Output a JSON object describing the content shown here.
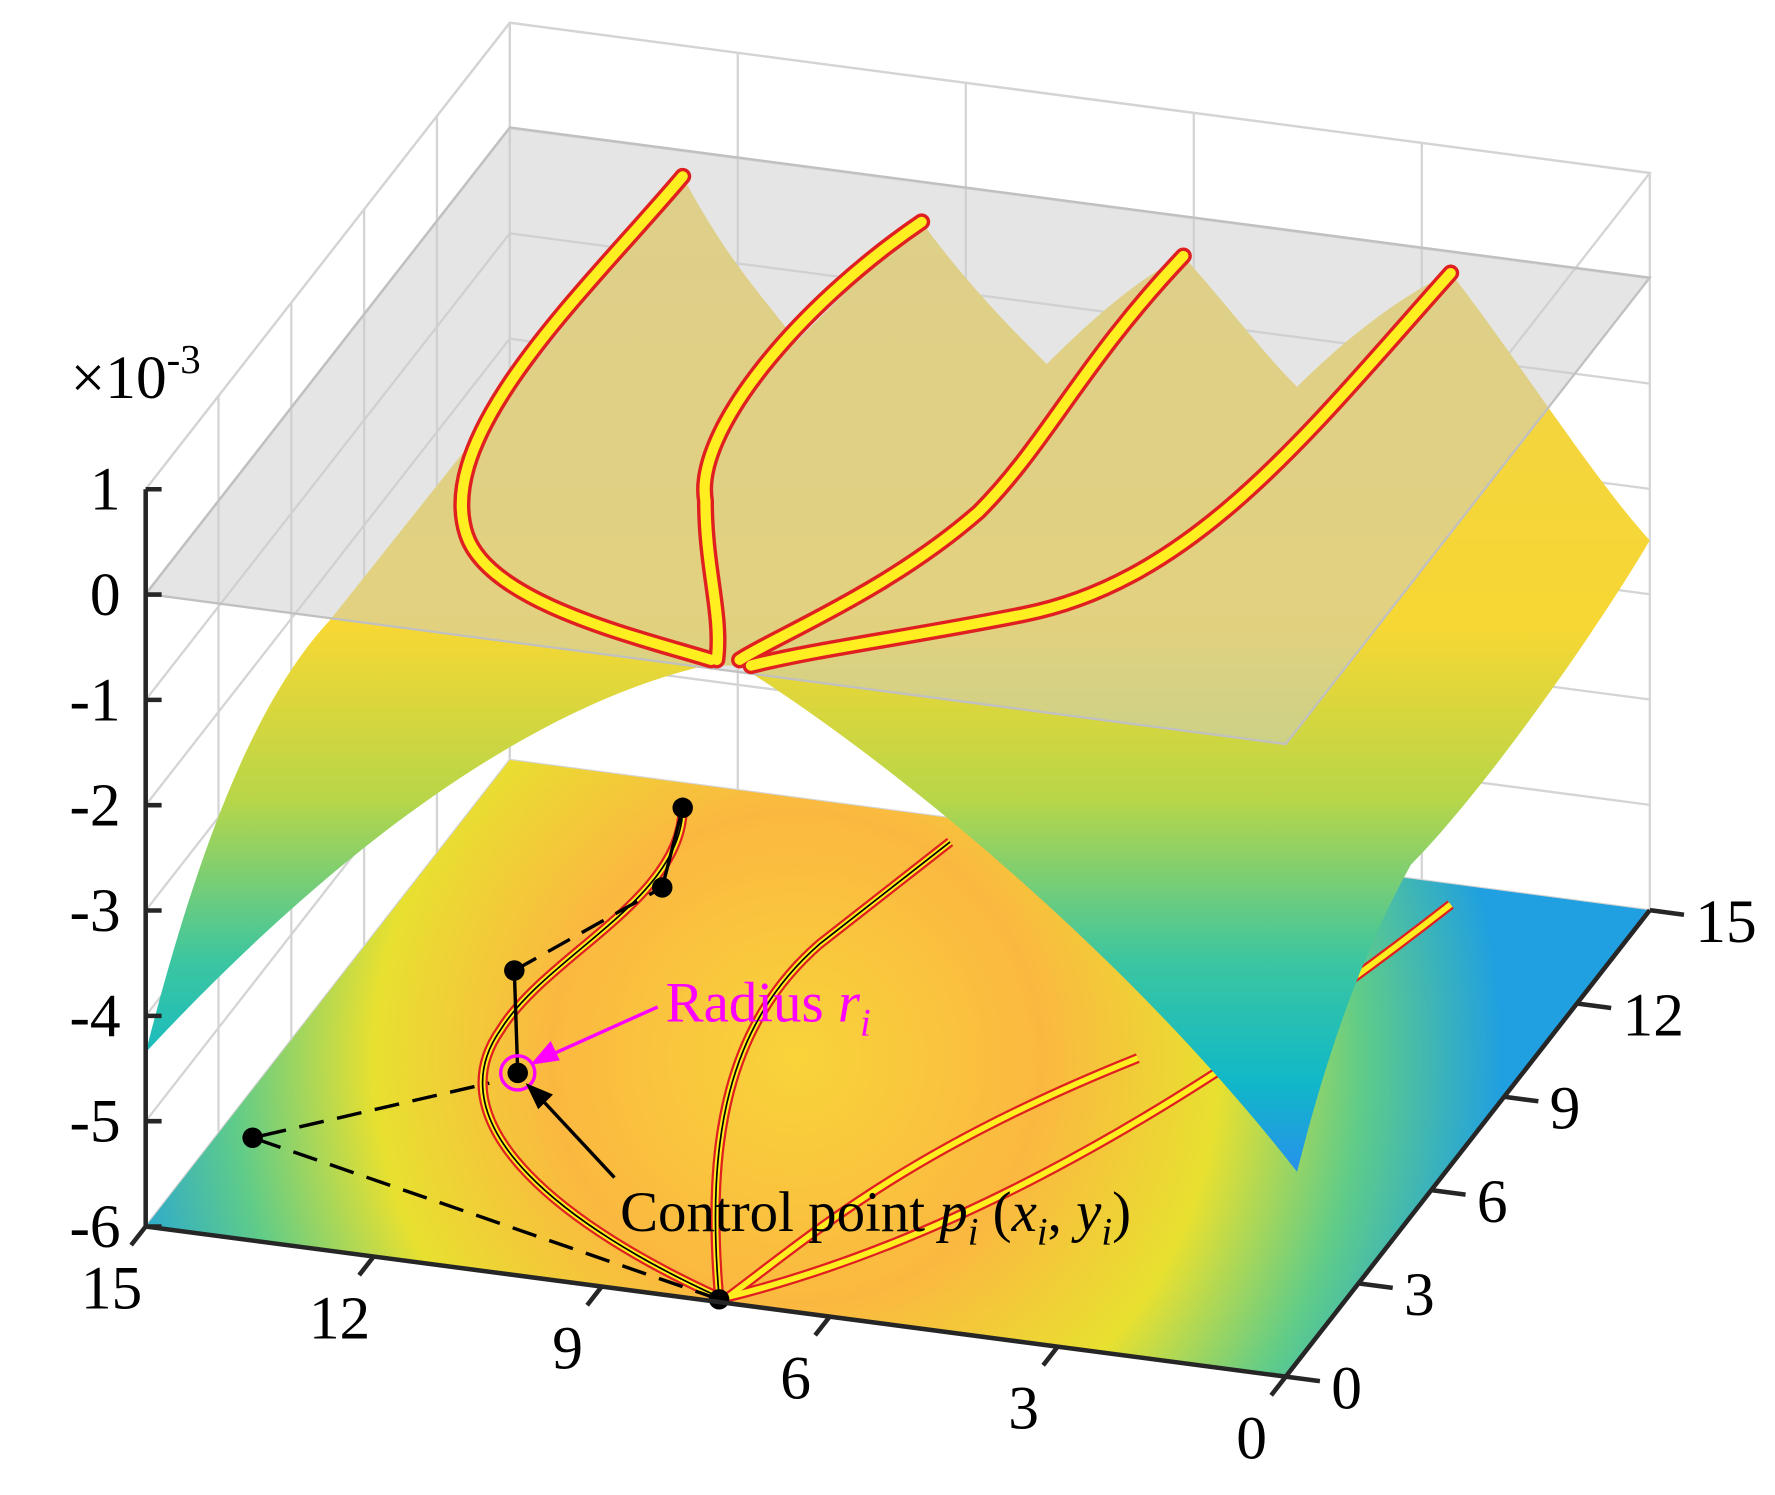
{
  "chart_data": {
    "type": "surface3d",
    "xlim": [
      0,
      15
    ],
    "xticks": [
      0,
      3,
      6,
      9,
      12,
      15
    ],
    "ylim": [
      0,
      15
    ],
    "yticks": [
      0,
      3,
      6,
      9,
      12,
      15
    ],
    "zlim": [
      -6,
      1
    ],
    "zticks": [
      1,
      0,
      -1,
      -2,
      -3,
      -4,
      -5,
      -6
    ],
    "z_exponent": {
      "base": "×10",
      "power": "-3"
    },
    "grid": true,
    "annotations": [
      {
        "parts": [
          "Radius ",
          "r",
          "i"
        ],
        "color": "#ff00ff"
      },
      {
        "parts": [
          "Control point ",
          "p",
          "i",
          " (",
          "x",
          "i",
          ", ",
          "y",
          "i",
          ")"
        ],
        "color": "#000000"
      }
    ]
  }
}
